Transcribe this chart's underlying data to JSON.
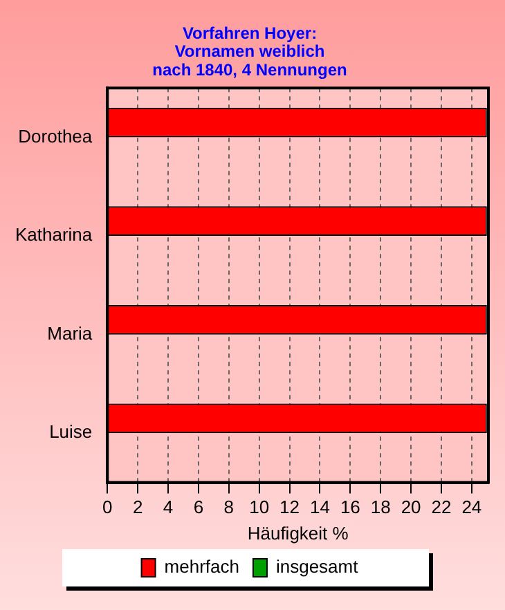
{
  "chart_data": {
    "type": "bar",
    "orientation": "horizontal",
    "title": "Vorfahren Hoyer:\nVornamen weiblich\nnach 1840, 4 Nennungen",
    "xlabel": "Häufigkeit %",
    "categories": [
      "Dorothea",
      "Katharina",
      "Maria",
      "Luise"
    ],
    "series": [
      {
        "name": "mehrfach",
        "color": "#ff0000",
        "values": [
          25,
          25,
          25,
          25
        ]
      },
      {
        "name": "insgesamt",
        "color": "#00a000",
        "values": [
          null,
          null,
          null,
          null
        ]
      }
    ],
    "xlim": [
      0,
      25.1
    ],
    "xticks": [
      0,
      2,
      4,
      6,
      8,
      10,
      12,
      14,
      16,
      18,
      20,
      22,
      24
    ],
    "grid": "x",
    "legend": "bottom"
  }
}
